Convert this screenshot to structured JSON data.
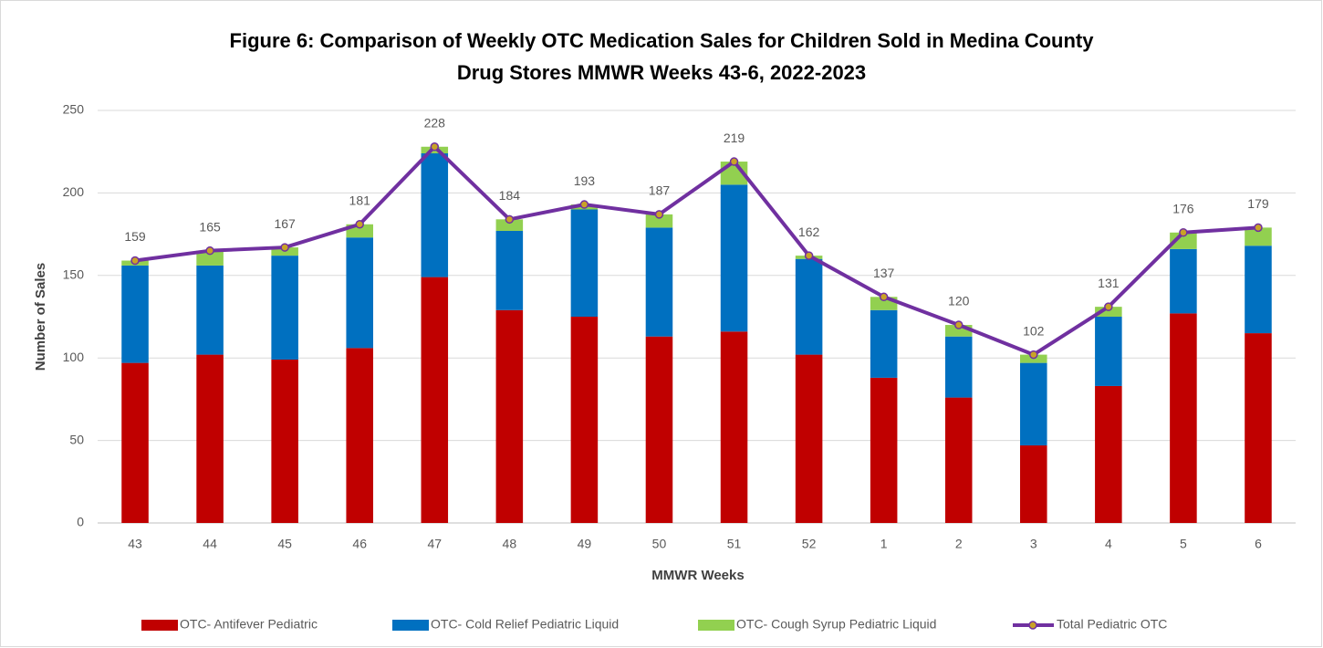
{
  "chart_data": {
    "type": "stacked-bar-line",
    "title": [
      "Figure 6: Comparison of Weekly OTC Medication Sales for Children Sold in Medina County",
      "Drug Stores MMWR Weeks 43-6, 2022-2023"
    ],
    "x_label": "MMWR Weeks",
    "y_label": "Number of Sales",
    "categories": [
      "43",
      "44",
      "45",
      "46",
      "47",
      "48",
      "49",
      "50",
      "51",
      "52",
      "1",
      "2",
      "3",
      "4",
      "5",
      "6"
    ],
    "series": [
      {
        "name": "OTC- Antifever Pediatric",
        "color": "#c00000",
        "kind": "bar",
        "values": [
          97,
          102,
          99,
          106,
          149,
          129,
          125,
          113,
          116,
          102,
          88,
          76,
          47,
          83,
          127,
          115
        ]
      },
      {
        "name": "OTC- Cold Relief Pediatric Liquid",
        "color": "#0070c0",
        "kind": "bar",
        "values": [
          59,
          54,
          63,
          67,
          75,
          48,
          65,
          66,
          89,
          58,
          41,
          37,
          50,
          42,
          39,
          53
        ]
      },
      {
        "name": "OTC- Cough Syrup Pediatric Liquid",
        "color": "#92d050",
        "kind": "bar",
        "values": [
          3,
          9,
          5,
          8,
          4,
          7,
          3,
          8,
          14,
          2,
          8,
          7,
          5,
          6,
          10,
          11
        ]
      },
      {
        "name": "Total Pediatric OTC",
        "color": "#7030a0",
        "marker_color": "#c9a227",
        "kind": "line",
        "values": [
          159,
          165,
          167,
          181,
          228,
          184,
          193,
          187,
          219,
          162,
          137,
          120,
          102,
          131,
          176,
          179
        ]
      }
    ],
    "ylim": [
      0,
      250
    ],
    "yticks": [
      0,
      50,
      100,
      150,
      200,
      250
    ],
    "grid": true,
    "legend": "bottom"
  }
}
